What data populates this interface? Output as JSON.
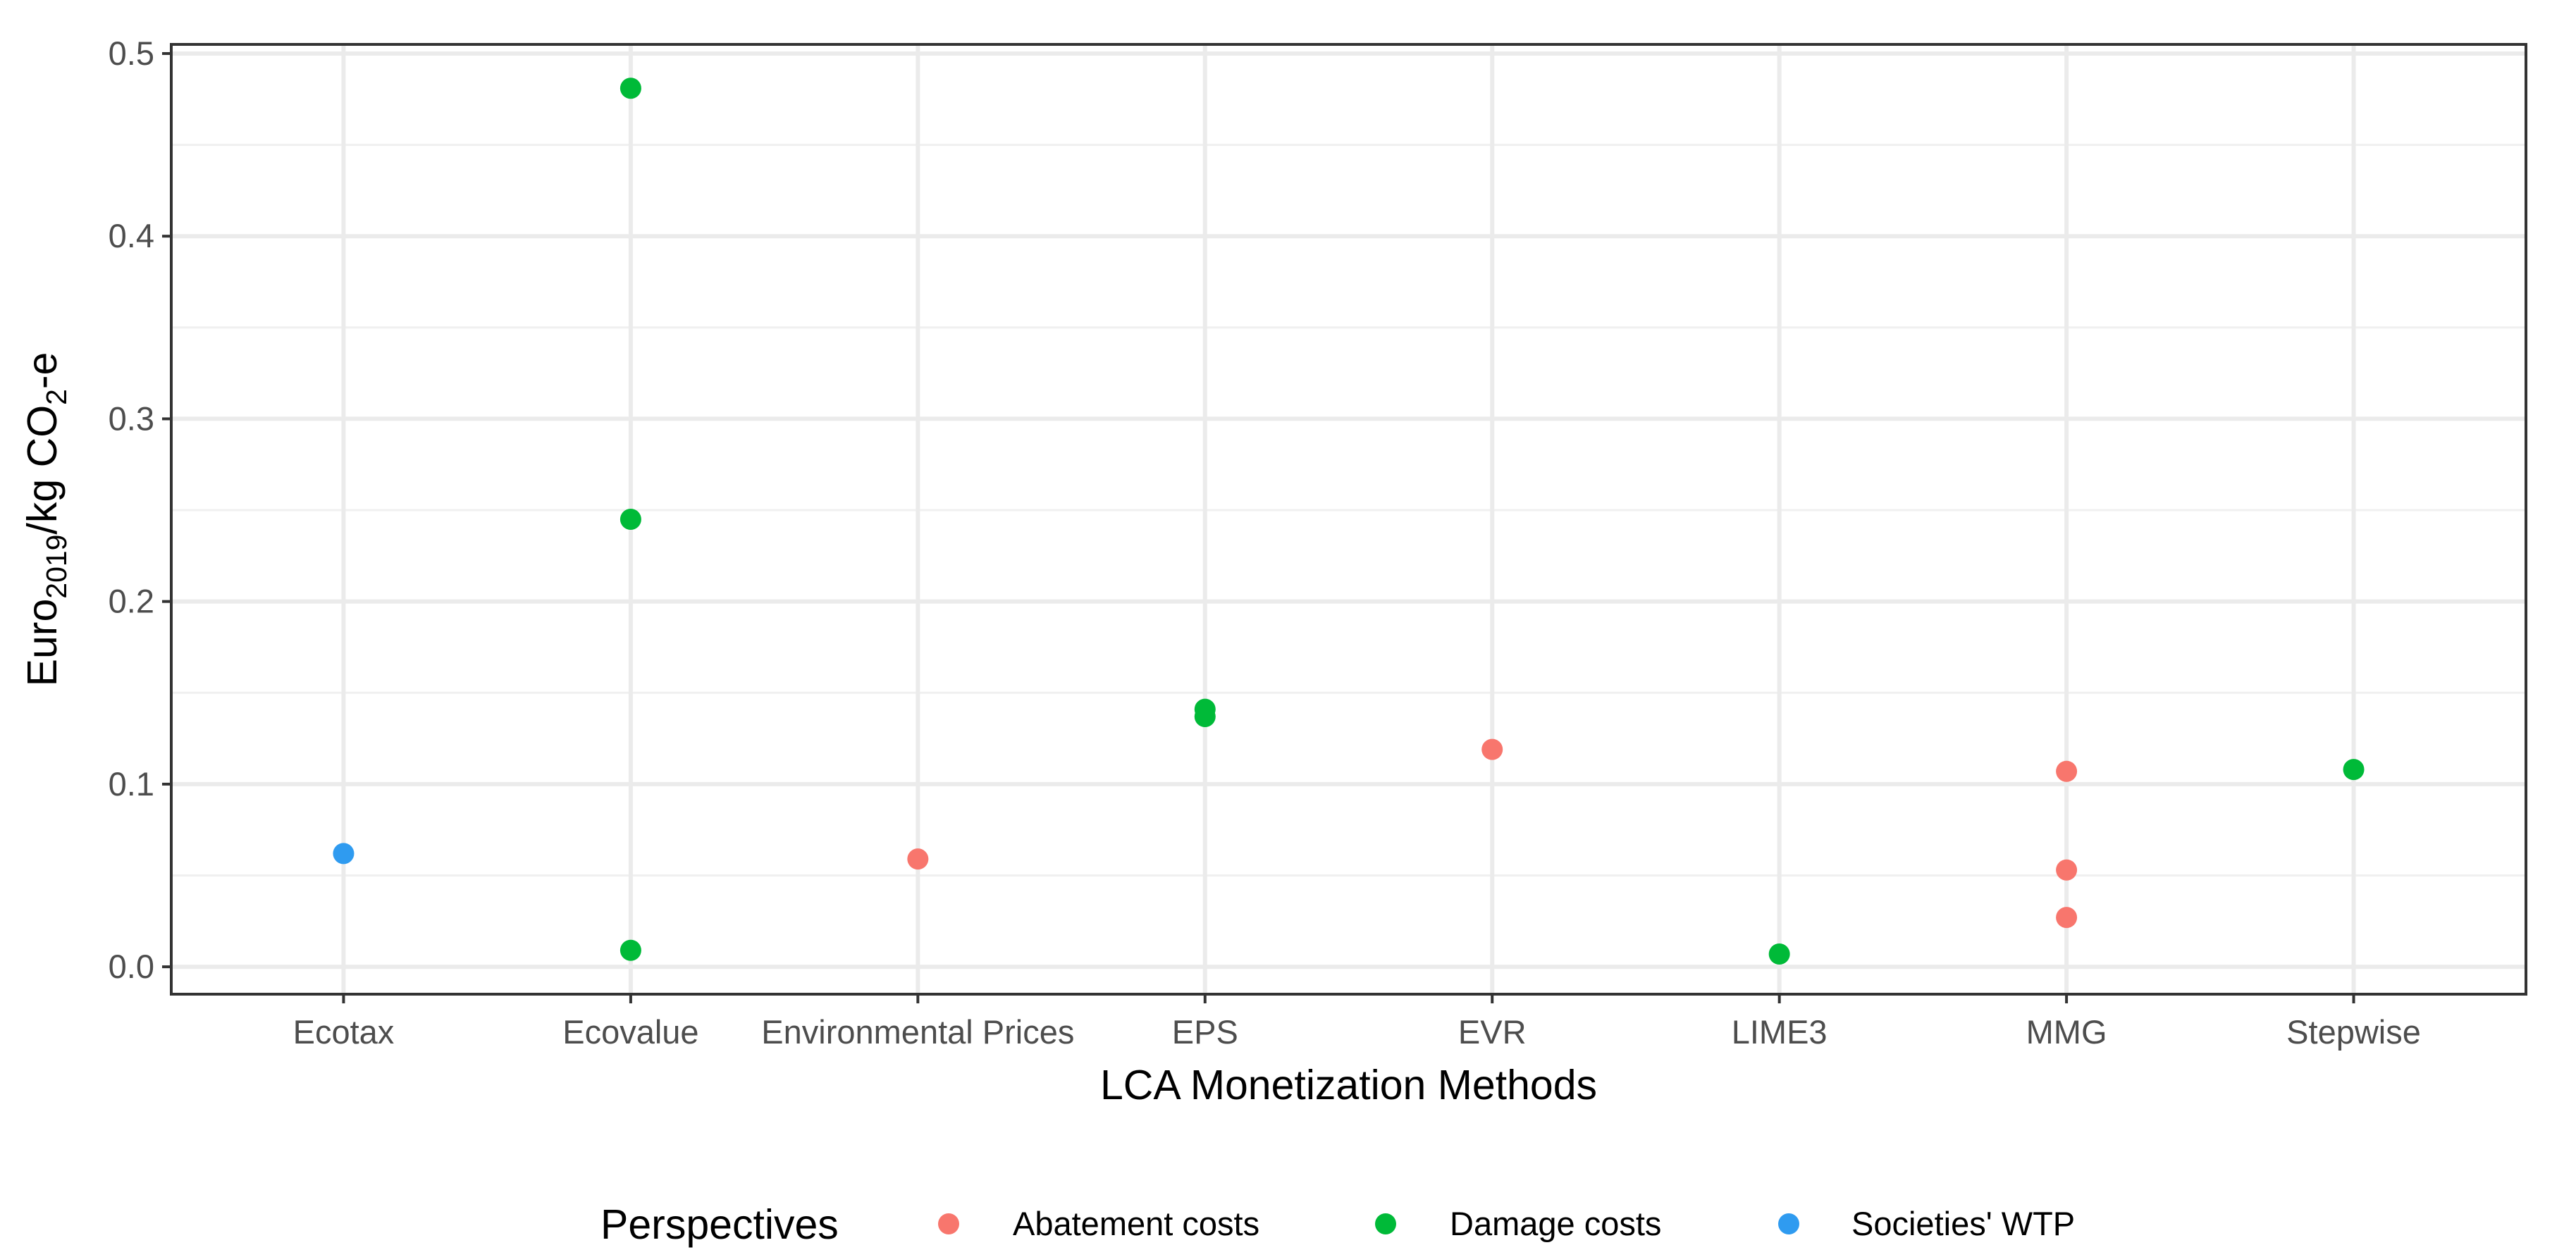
{
  "chart_data": {
    "type": "scatter",
    "title": "",
    "xlabel": "LCA Monetization Methods",
    "ylabel": {
      "base": "Euro",
      "base_sub": "2019",
      "mid": "/kg CO",
      "mid_sub": "2",
      "end": "-e"
    },
    "categories": [
      "Ecotax",
      "Ecovalue",
      "Environmental Prices",
      "EPS",
      "EVR",
      "LIME3",
      "MMG",
      "Stepwise"
    ],
    "ylim": [
      -0.015,
      0.505
    ],
    "yticks": [
      0.0,
      0.1,
      0.2,
      0.3,
      0.4,
      0.5
    ],
    "ytick_labels": [
      "0.0",
      "0.1",
      "0.2",
      "0.3",
      "0.4",
      "0.5"
    ],
    "grid": true,
    "legend": {
      "title": "Perspectives",
      "position": "bottom"
    },
    "series": [
      {
        "name": "Abatement costs",
        "color": "#F8766D",
        "points": [
          {
            "x": "Environmental Prices",
            "y": 0.059
          },
          {
            "x": "EVR",
            "y": 0.119
          },
          {
            "x": "MMG",
            "y": 0.107
          },
          {
            "x": "MMG",
            "y": 0.053
          },
          {
            "x": "MMG",
            "y": 0.027
          }
        ]
      },
      {
        "name": "Damage costs",
        "color": "#00BA38",
        "points": [
          {
            "x": "Ecovalue",
            "y": 0.481
          },
          {
            "x": "Ecovalue",
            "y": 0.245
          },
          {
            "x": "Ecovalue",
            "y": 0.009
          },
          {
            "x": "EPS",
            "y": 0.141
          },
          {
            "x": "EPS",
            "y": 0.137
          },
          {
            "x": "LIME3",
            "y": 0.007
          },
          {
            "x": "Stepwise",
            "y": 0.108
          }
        ]
      },
      {
        "name": "Societies' WTP",
        "color": "#2F9BF0",
        "points": [
          {
            "x": "Ecotax",
            "y": 0.062
          }
        ]
      }
    ]
  }
}
